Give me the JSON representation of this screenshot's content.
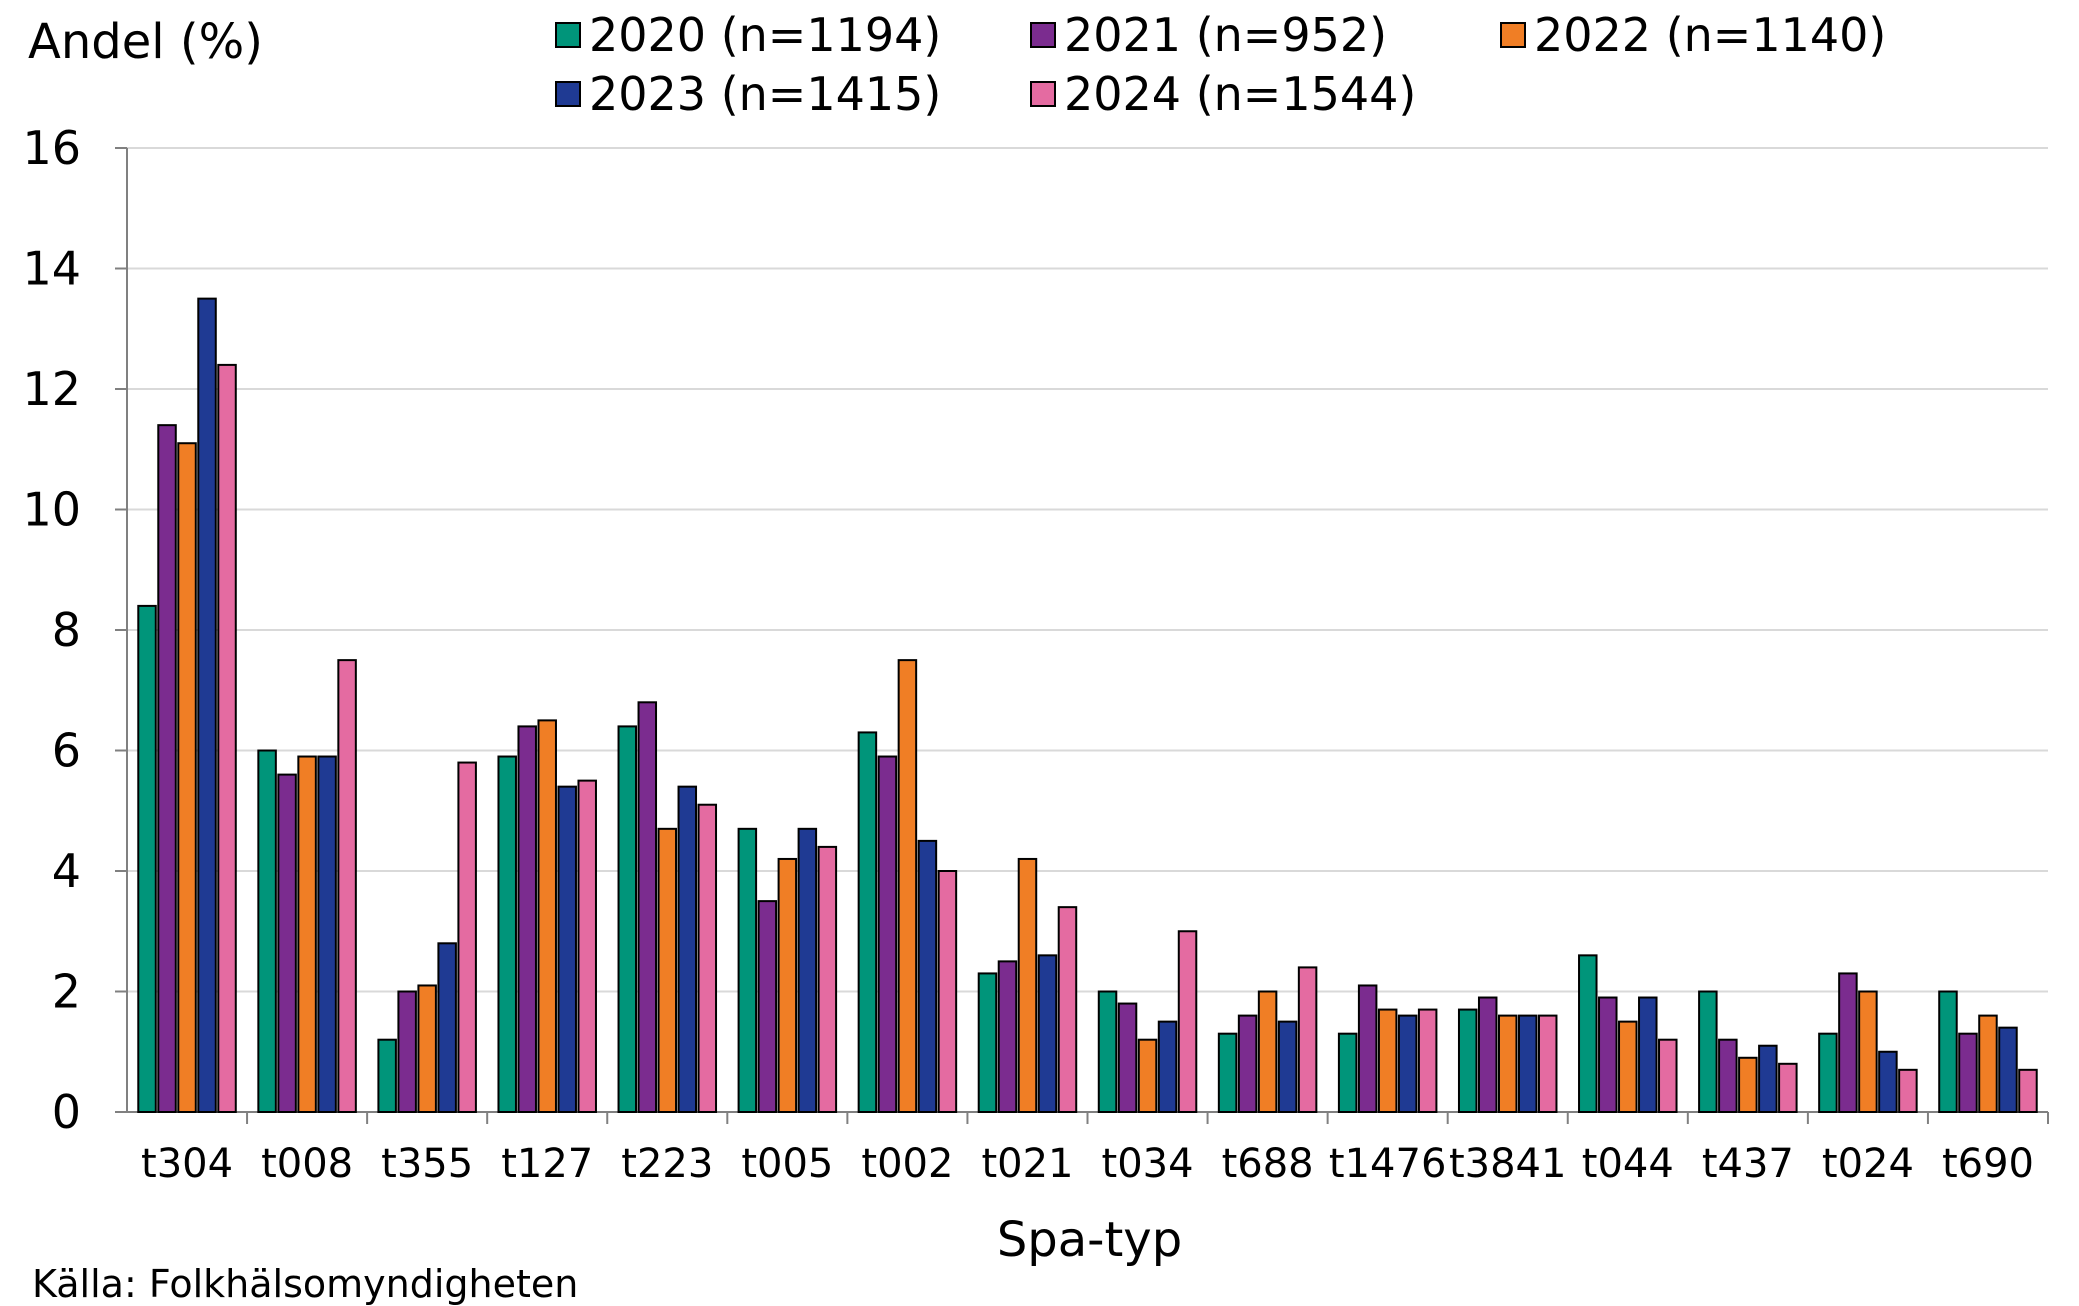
{
  "chart_data": {
    "type": "bar",
    "ylabel": "Andel (%)",
    "xlabel": "Spa-typ",
    "source": "Källa: Folkhälsomyndigheten",
    "ylim": [
      0,
      16
    ],
    "yticks": [
      0,
      2,
      4,
      6,
      8,
      10,
      12,
      14,
      16
    ],
    "grid": true,
    "legend_position": "top",
    "categories": [
      "t304",
      "t008",
      "t355",
      "t127",
      "t223",
      "t005",
      "t002",
      "t021",
      "t034",
      "t688",
      "t1476",
      "t3841",
      "t044",
      "t437",
      "t024",
      "t690"
    ],
    "series": [
      {
        "name": "2020 (n=1194)",
        "color": "#00957A",
        "values": [
          8.4,
          6.0,
          1.2,
          5.9,
          6.4,
          4.7,
          6.3,
          2.3,
          2.0,
          1.3,
          1.3,
          1.7,
          2.6,
          2.0,
          1.3,
          2.0
        ]
      },
      {
        "name": "2021 (n=952)",
        "color": "#7B2C8F",
        "values": [
          11.4,
          5.6,
          2.0,
          6.4,
          6.8,
          3.5,
          5.9,
          2.5,
          1.8,
          1.6,
          2.1,
          1.9,
          1.9,
          1.2,
          2.3,
          1.3
        ]
      },
      {
        "name": "2022 (n=1140)",
        "color": "#F07E25",
        "values": [
          11.1,
          5.9,
          2.1,
          6.5,
          4.7,
          4.2,
          7.5,
          4.2,
          1.2,
          2.0,
          1.7,
          1.6,
          1.5,
          0.9,
          2.0,
          1.6
        ]
      },
      {
        "name": "2023 (n=1415)",
        "color": "#1F3A93",
        "values": [
          13.5,
          5.9,
          2.8,
          5.4,
          5.4,
          4.7,
          4.5,
          2.6,
          1.5,
          1.5,
          1.6,
          1.6,
          1.9,
          1.1,
          1.0,
          1.4
        ]
      },
      {
        "name": "2024 (n=1544)",
        "color": "#E46BA1",
        "values": [
          12.4,
          7.5,
          5.8,
          5.5,
          5.1,
          4.4,
          4.0,
          3.4,
          3.0,
          2.4,
          1.7,
          1.6,
          1.2,
          0.8,
          0.7,
          0.7
        ]
      }
    ]
  }
}
